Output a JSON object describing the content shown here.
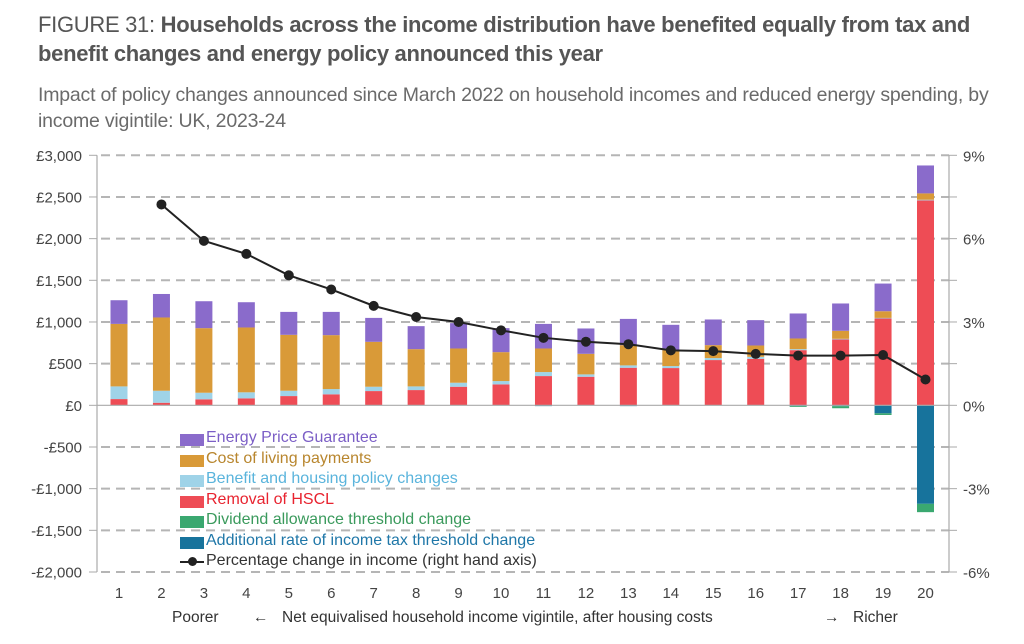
{
  "figure": {
    "lead": "FIGURE 31: ",
    "title": "Households across the income distribution have benefited equally from tax and benefit changes and energy policy announced this year",
    "subtitle": "Impact of policy changes announced since March 2022 on household incomes and reduced energy spending, by income vigintile: UK, 2023-24"
  },
  "chart_data": {
    "type": "bar",
    "stacked": true,
    "title": "Households across the income distribution have benefited equally from tax and benefit changes and energy policy announced this year",
    "subtitle": "Impact of policy changes announced since March 2022 on household incomes and reduced energy spending, by income vigintile: UK, 2023-24",
    "categories": [
      "1",
      "2",
      "3",
      "4",
      "5",
      "6",
      "7",
      "8",
      "9",
      "10",
      "11",
      "12",
      "13",
      "14",
      "15",
      "16",
      "17",
      "18",
      "19",
      "20"
    ],
    "xlabel": {
      "left": "Poorer",
      "left_arrow": "←",
      "center": "Net equivalised household income vigintile, after housing costs",
      "right_arrow": "→",
      "right": "Richer"
    },
    "ylabel": "",
    "ylim": [
      -2000,
      3000
    ],
    "yticks": [
      3000,
      2500,
      2000,
      1500,
      1000,
      500,
      0,
      -500,
      -1000,
      -1500,
      -2000
    ],
    "ytick_labels": [
      "£3,000",
      "£2,500",
      "£2,000",
      "£1,500",
      "£1,000",
      "£500",
      "£0",
      "-£500",
      "-£1,000",
      "-£1,500",
      "-£2,000"
    ],
    "y2lim": [
      -6,
      9
    ],
    "y2ticks": [
      9,
      6,
      3,
      0,
      -3,
      -6
    ],
    "y2tick_labels": [
      "9%",
      "6%",
      "3%",
      "0%",
      "-3%",
      "-6%"
    ],
    "grid": true,
    "legend_position": "bottom-left (inside plot)",
    "series": [
      {
        "name": "Energy Price Guarantee",
        "color": "#8a6bcb",
        "text_color": "#7b5ec6",
        "values": [
          284,
          282,
          323,
          303,
          275,
          279,
          287,
          276,
          304,
          288,
          295,
          304,
          315,
          304,
          308,
          304,
          300,
          328,
          332,
          335
        ]
      },
      {
        "name": "Cost of living payments",
        "color": "#d99a38",
        "text_color": "#b8862e",
        "values": [
          750,
          879,
          775,
          778,
          671,
          647,
          539,
          447,
          411,
          347,
          283,
          247,
          243,
          191,
          155,
          136,
          128,
          96,
          80,
          76
        ]
      },
      {
        "name": "Benefit and housing policy changes",
        "color": "#9fd3e8",
        "text_color": "#5ab4dc",
        "values": [
          152,
          144,
          79,
          72,
          64,
          63,
          52,
          44,
          48,
          40,
          48,
          28,
          28,
          24,
          24,
          24,
          12,
          8,
          7,
          8
        ]
      },
      {
        "name": "Removal of HSCL",
        "color": "#ee4c55",
        "text_color": "#e8232f",
        "values": [
          75,
          31,
          72,
          84,
          111,
          132,
          171,
          183,
          223,
          251,
          351,
          343,
          451,
          447,
          543,
          558,
          662,
          790,
          1042,
          2459
        ]
      },
      {
        "name": "Dividend allowance threshold change",
        "color": "#3aa870",
        "text_color": "#3a9a5c",
        "values": [
          0,
          0,
          0,
          0,
          0,
          0,
          0,
          0,
          0,
          0,
          0,
          0,
          0,
          0,
          0,
          0,
          -8,
          -25,
          -20,
          -100
        ]
      },
      {
        "name": "Additional rate of income tax threshold change",
        "color": "#17739c",
        "text_color": "#1f77a8",
        "values": [
          0,
          0,
          0,
          0,
          0,
          0,
          0,
          0,
          0,
          0,
          -8,
          0,
          -8,
          0,
          0,
          0,
          -10,
          -10,
          -96,
          -1182
        ]
      }
    ],
    "line_series": {
      "name": "Percentage change in income (right hand axis)",
      "axis": "right",
      "color": "#222222",
      "values": [
        null,
        7.23,
        5.92,
        5.45,
        4.68,
        4.17,
        3.58,
        3.18,
        3.0,
        2.7,
        2.43,
        2.29,
        2.2,
        1.98,
        1.95,
        1.85,
        1.79,
        1.79,
        1.81,
        0.93
      ]
    }
  }
}
